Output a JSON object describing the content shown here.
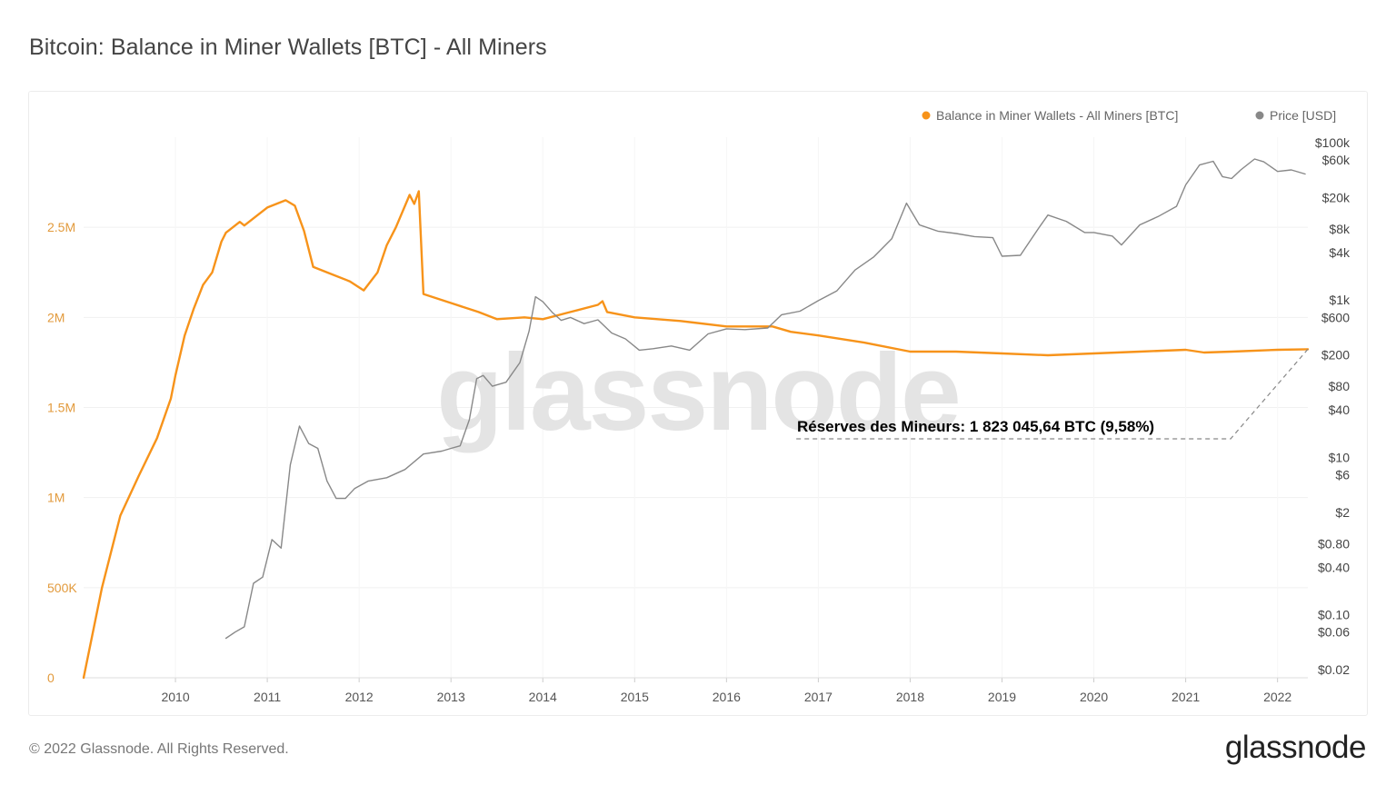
{
  "header": {
    "title": "Bitcoin: Balance in Miner Wallets [BTC] - All Miners"
  },
  "footer": {
    "copyright": "© 2022 Glassnode. All Rights Reserved.",
    "logo": "glassnode"
  },
  "watermark": "glassnode",
  "chart_data": {
    "type": "line",
    "title": "Bitcoin: Balance in Miner Wallets [BTC] - All Miners",
    "legend_position": "top-right",
    "grid": true,
    "x_ticks": [
      "2010",
      "2011",
      "2012",
      "2013",
      "2014",
      "2015",
      "2016",
      "2017",
      "2018",
      "2019",
      "2020",
      "2021",
      "2022"
    ],
    "x_range": [
      2009.0,
      2022.33
    ],
    "y_left": {
      "ticks": [
        "0",
        "500K",
        "1M",
        "1.5M",
        "2M",
        "2.5M"
      ],
      "range": [
        0,
        3000000
      ]
    },
    "y_right": {
      "scale": "log",
      "ticks": [
        "$0.02",
        "$0.06",
        "$0.10",
        "$0.40",
        "$0.80",
        "$2",
        "$6",
        "$10",
        "$40",
        "$80",
        "$200",
        "$600",
        "$1k",
        "$4k",
        "$8k",
        "$20k",
        "$60k",
        "$100k"
      ]
    },
    "series": [
      {
        "name": "Balance in Miner Wallets - All Miners [BTC]",
        "color": "#f7931a",
        "axis": "left",
        "x": [
          2009.0,
          2009.2,
          2009.4,
          2009.6,
          2009.8,
          2009.95,
          2010.0,
          2010.1,
          2010.2,
          2010.3,
          2010.4,
          2010.5,
          2010.55,
          2010.7,
          2010.75,
          2010.9,
          2011.0,
          2011.2,
          2011.3,
          2011.4,
          2011.5,
          2011.7,
          2011.9,
          2012.05,
          2012.2,
          2012.3,
          2012.4,
          2012.55,
          2012.6,
          2012.65,
          2012.7,
          2013.0,
          2013.3,
          2013.5,
          2013.8,
          2014.0,
          2014.3,
          2014.6,
          2014.65,
          2014.7,
          2015.0,
          2015.5,
          2016.0,
          2016.5,
          2016.7,
          2017.0,
          2017.5,
          2018.0,
          2018.5,
          2019.0,
          2019.5,
          2020.0,
          2020.5,
          2021.0,
          2021.2,
          2021.5,
          2022.0,
          2022.33
        ],
        "values": [
          0,
          500000,
          900000,
          1120000,
          1330000,
          1550000,
          1680000,
          1900000,
          2050000,
          2180000,
          2250000,
          2420000,
          2470000,
          2530000,
          2510000,
          2570000,
          2610000,
          2650000,
          2620000,
          2480000,
          2280000,
          2240000,
          2200000,
          2150000,
          2250000,
          2400000,
          2500000,
          2680000,
          2630000,
          2700000,
          2130000,
          2080000,
          2030000,
          1990000,
          2000000,
          1990000,
          2030000,
          2070000,
          2090000,
          2030000,
          2000000,
          1980000,
          1950000,
          1950000,
          1920000,
          1900000,
          1860000,
          1810000,
          1810000,
          1800000,
          1790000,
          1800000,
          1810000,
          1820000,
          1805000,
          1810000,
          1820000,
          1823045
        ]
      },
      {
        "name": "Price [USD]",
        "color": "#888888",
        "axis": "right",
        "x": [
          2010.55,
          2010.65,
          2010.75,
          2010.85,
          2010.95,
          2011.05,
          2011.15,
          2011.25,
          2011.35,
          2011.45,
          2011.55,
          2011.65,
          2011.75,
          2011.85,
          2011.95,
          2012.1,
          2012.3,
          2012.5,
          2012.7,
          2012.9,
          2013.0,
          2013.1,
          2013.2,
          2013.28,
          2013.35,
          2013.45,
          2013.6,
          2013.75,
          2013.85,
          2013.92,
          2014.0,
          2014.1,
          2014.2,
          2014.3,
          2014.45,
          2014.6,
          2014.75,
          2014.9,
          2015.05,
          2015.2,
          2015.4,
          2015.6,
          2015.8,
          2016.0,
          2016.2,
          2016.45,
          2016.6,
          2016.8,
          2017.0,
          2017.2,
          2017.4,
          2017.6,
          2017.8,
          2017.96,
          2018.1,
          2018.3,
          2018.5,
          2018.7,
          2018.9,
          2019.0,
          2019.2,
          2019.4,
          2019.5,
          2019.7,
          2019.9,
          2020.0,
          2020.2,
          2020.3,
          2020.5,
          2020.7,
          2020.9,
          2021.0,
          2021.15,
          2021.3,
          2021.4,
          2021.5,
          2021.6,
          2021.75,
          2021.85,
          2022.0,
          2022.15,
          2022.3
        ],
        "values": [
          0.05,
          0.06,
          0.07,
          0.25,
          0.3,
          0.9,
          0.7,
          8,
          25,
          15,
          13,
          5,
          3,
          3,
          4,
          5,
          5.5,
          7,
          11,
          12,
          13,
          14,
          30,
          100,
          110,
          80,
          90,
          160,
          400,
          1100,
          950,
          700,
          550,
          600,
          500,
          560,
          380,
          320,
          230,
          240,
          260,
          230,
          370,
          430,
          420,
          440,
          650,
          720,
          980,
          1300,
          2400,
          3500,
          6000,
          17000,
          9000,
          7500,
          7000,
          6400,
          6200,
          3600,
          3700,
          8200,
          12000,
          10000,
          7200,
          7200,
          6500,
          5000,
          9000,
          11500,
          15500,
          29000,
          52000,
          58000,
          37000,
          35000,
          45000,
          62000,
          57000,
          43000,
          45000,
          40000
        ]
      }
    ],
    "annotation": {
      "text": "Réserves des Mineurs: 1 823 045,64 BTC (9,58%)",
      "x": 2022.33,
      "value": 1823045.64
    }
  }
}
